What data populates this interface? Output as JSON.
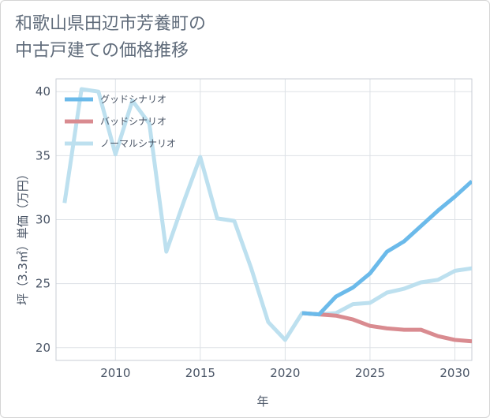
{
  "chart_data": {
    "type": "line",
    "title_line1": "和歌山県田辺市芳養町の",
    "title_line2": "中古戸建ての価格推移",
    "xlabel": "年",
    "ylabel": "坪（3.3㎡）単価（万円）",
    "xlim": [
      2006.5,
      2031
    ],
    "ylim": [
      19,
      41
    ],
    "xticks": [
      2010,
      2015,
      2020,
      2025,
      2030
    ],
    "yticks": [
      20,
      25,
      30,
      35,
      40
    ],
    "series": [
      {
        "name": "グッドシナリオ",
        "color": "#6bbaea",
        "x": [
          2021,
          2022,
          2023,
          2024,
          2025,
          2026,
          2027,
          2028,
          2029,
          2030,
          2031
        ],
        "values": [
          22.7,
          22.6,
          24.0,
          24.7,
          25.8,
          27.5,
          28.3,
          29.5,
          30.7,
          31.8,
          33.0
        ]
      },
      {
        "name": "バッドシナリオ",
        "color": "#d98b90",
        "x": [
          2021,
          2022,
          2023,
          2024,
          2025,
          2026,
          2027,
          2028,
          2029,
          2030,
          2031
        ],
        "values": [
          22.7,
          22.6,
          22.5,
          22.2,
          21.7,
          21.5,
          21.4,
          21.4,
          20.9,
          20.6,
          20.5
        ]
      },
      {
        "name": "ノーマルシナリオ",
        "color": "#bde0ef",
        "x": [
          2007,
          2008,
          2009,
          2010,
          2011,
          2012,
          2013,
          2014,
          2015,
          2016,
          2017,
          2018,
          2019,
          2020,
          2021,
          2022,
          2023,
          2024,
          2025,
          2026,
          2027,
          2028,
          2029,
          2030,
          2031
        ],
        "values": [
          31.3,
          40.2,
          40.0,
          35.1,
          39.3,
          37.5,
          27.5,
          31.3,
          34.9,
          30.1,
          29.9,
          26.2,
          22.0,
          20.6,
          22.7,
          22.6,
          22.7,
          23.4,
          23.5,
          24.3,
          24.6,
          25.1,
          25.3,
          26.0,
          26.2
        ]
      }
    ]
  }
}
